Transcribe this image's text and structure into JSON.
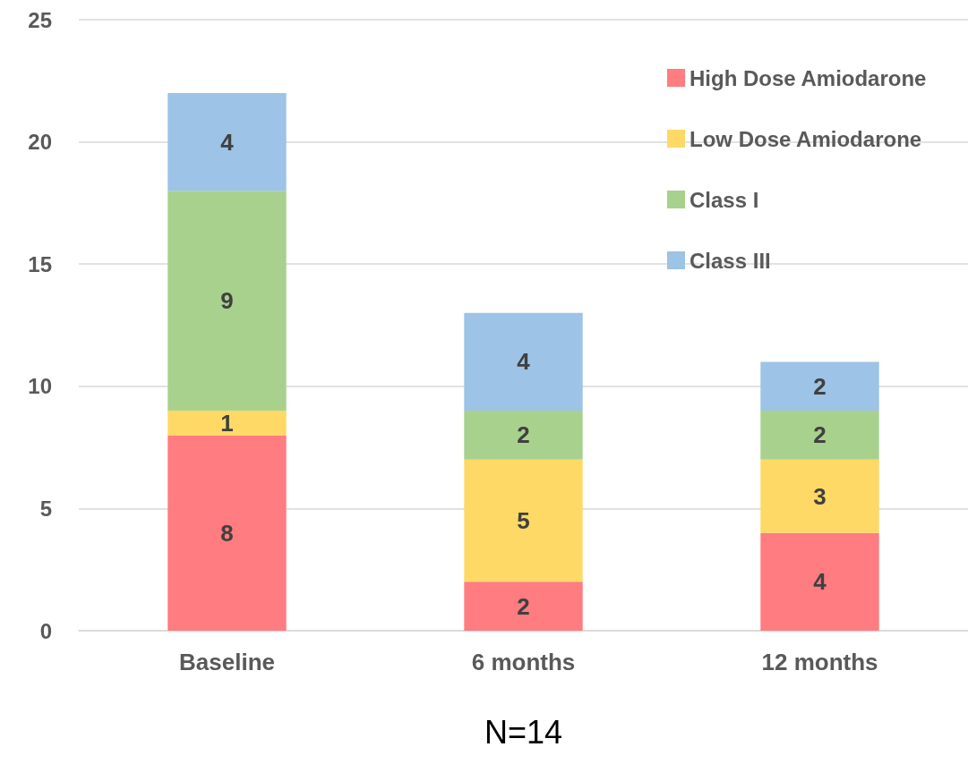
{
  "chart_data": {
    "type": "bar",
    "xlabel": "N=14",
    "categories": [
      "Baseline",
      "6 months",
      "12 months"
    ],
    "series": [
      {
        "name": "High Dose Amiodarone",
        "color": "#ff7c80",
        "values": [
          8,
          2,
          4
        ]
      },
      {
        "name": "Low Dose Amiodarone",
        "color": "#ffd966",
        "values": [
          1,
          5,
          3
        ]
      },
      {
        "name": "Class I",
        "color": "#a9d18e",
        "values": [
          9,
          2,
          2
        ]
      },
      {
        "name": "Class III",
        "color": "#9dc3e6",
        "values": [
          4,
          4,
          2
        ]
      }
    ],
    "stacked": true,
    "data_labels": true,
    "ylim": [
      0,
      25
    ],
    "yticks": [
      0,
      5,
      10,
      15,
      20,
      25
    ],
    "grid": "y",
    "legend": "top right"
  }
}
